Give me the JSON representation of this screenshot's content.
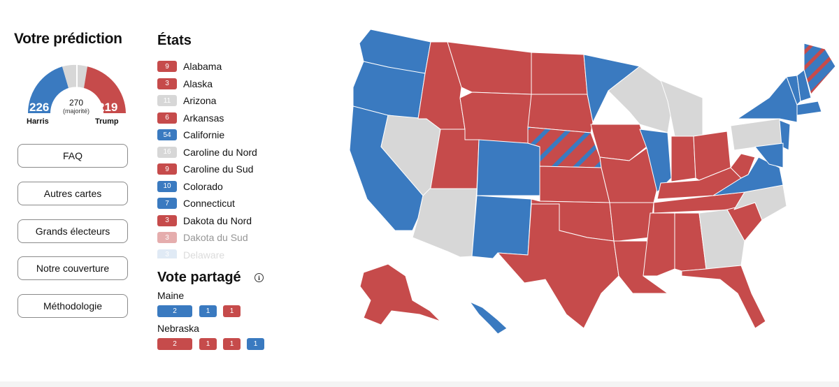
{
  "sidebar": {
    "title": "Votre prédiction",
    "gauge": {
      "harris_votes": "226",
      "trump_votes": "219",
      "majority_number": "270",
      "majority_label": "(majorité)",
      "harris_label": "Harris",
      "trump_label": "Trump",
      "colors": {
        "harris": "#3a7ac0",
        "trump": "#c64b4b",
        "tossup": "#d7d7d7"
      }
    },
    "buttons": [
      "FAQ",
      "Autres cartes",
      "Grands électeurs",
      "Notre couverture",
      "Méthodologie"
    ]
  },
  "states": {
    "title": "États",
    "items": [
      {
        "votes": "9",
        "name": "Alabama",
        "party": "rep"
      },
      {
        "votes": "3",
        "name": "Alaska",
        "party": "rep"
      },
      {
        "votes": "11",
        "name": "Arizona",
        "party": "toss"
      },
      {
        "votes": "6",
        "name": "Arkansas",
        "party": "rep"
      },
      {
        "votes": "54",
        "name": "Californie",
        "party": "dem"
      },
      {
        "votes": "16",
        "name": "Caroline du Nord",
        "party": "toss"
      },
      {
        "votes": "9",
        "name": "Caroline du Sud",
        "party": "rep"
      },
      {
        "votes": "10",
        "name": "Colorado",
        "party": "dem"
      },
      {
        "votes": "7",
        "name": "Connecticut",
        "party": "dem"
      },
      {
        "votes": "3",
        "name": "Dakota du Nord",
        "party": "rep"
      },
      {
        "votes": "3",
        "name": "Dakota du Sud",
        "party": "rep"
      },
      {
        "votes": "3",
        "name": "Delaware",
        "party": "dem"
      }
    ]
  },
  "split_vote": {
    "title": "Vote partagé",
    "info_icon": "info-icon",
    "maine": {
      "label": "Maine",
      "badges": [
        {
          "v": "2",
          "party": "dem"
        },
        {
          "v": "1",
          "party": "dem"
        },
        {
          "v": "1",
          "party": "rep"
        }
      ]
    },
    "nebraska": {
      "label": "Nebraska",
      "badges": [
        {
          "v": "2",
          "party": "rep"
        },
        {
          "v": "1",
          "party": "rep"
        },
        {
          "v": "1",
          "party": "rep"
        },
        {
          "v": "1",
          "party": "dem"
        }
      ]
    }
  },
  "map": {
    "name": "us-electoral-map"
  }
}
